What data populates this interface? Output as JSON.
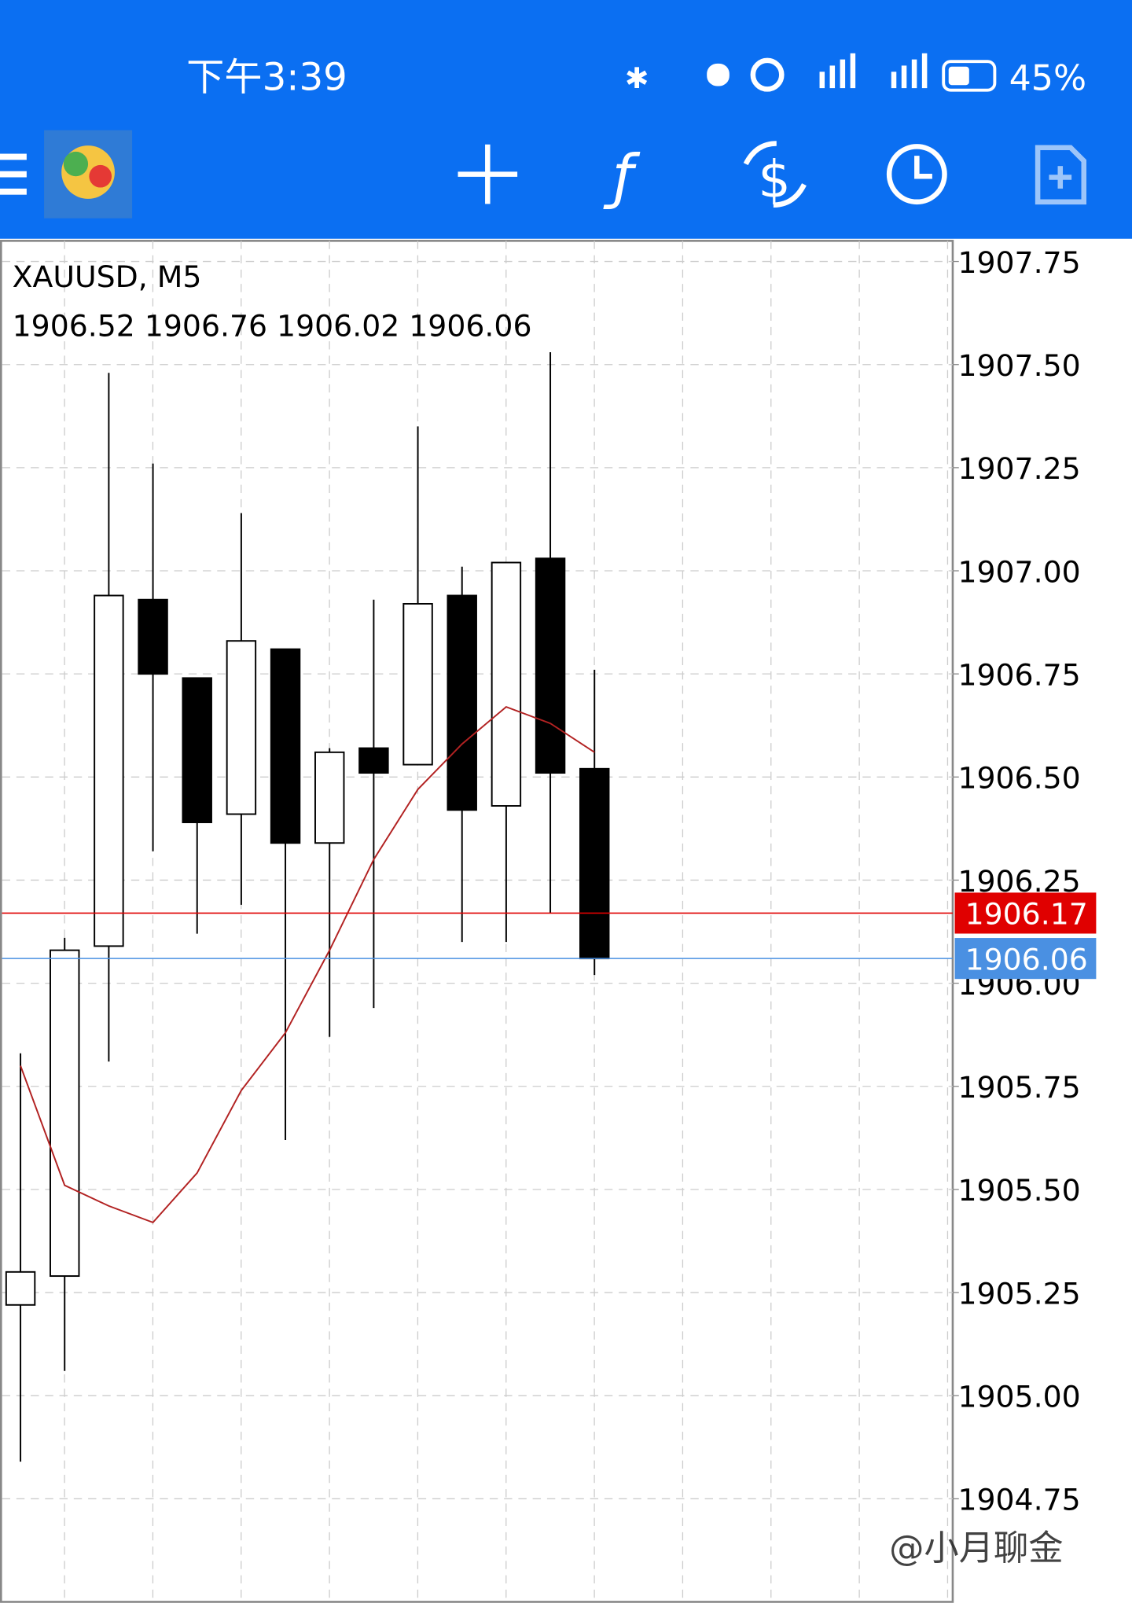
{
  "status_bar": {
    "time": "下午3:39",
    "battery": "45%"
  },
  "watermark": "@小月聊金",
  "chart_data": {
    "type": "candlestick",
    "title": "XAUUSD, M5",
    "info": "1906.52 1906.76 1906.02 1906.06",
    "open": [
      1905.22,
      1905.29,
      1906.09,
      1906.93,
      1906.74,
      1906.41,
      1906.81,
      1906.34,
      1906.57,
      1906.53,
      1906.94,
      1906.43,
      1907.03,
      1906.52
    ],
    "high": [
      1905.83,
      1906.11,
      1907.48,
      1907.26,
      1906.74,
      1907.14,
      1906.81,
      1906.57,
      1906.93,
      1907.35,
      1907.01,
      1907.02,
      1907.53,
      1906.76
    ],
    "low": [
      1904.84,
      1905.06,
      1905.81,
      1906.32,
      1906.12,
      1906.19,
      1905.62,
      1905.87,
      1905.94,
      1906.53,
      1906.1,
      1906.1,
      1906.17,
      1906.02
    ],
    "close": [
      1905.3,
      1906.08,
      1906.94,
      1906.75,
      1906.39,
      1906.83,
      1906.34,
      1906.56,
      1906.51,
      1906.92,
      1906.42,
      1907.02,
      1906.51,
      1906.06
    ],
    "series": [
      {
        "color": "#b22222",
        "values": [
          1905.8,
          1905.51,
          1905.46,
          1905.42,
          1905.54,
          1905.74,
          1905.88,
          1906.08,
          1906.3,
          1906.47,
          1906.58,
          1906.67,
          1906.63,
          1906.56
        ]
      }
    ],
    "bid_line": {
      "value": 1906.17,
      "color": "#e00000"
    },
    "ask_line": {
      "value": 1906.06,
      "color": "#4a90e2"
    },
    "ylim": [
      1904.5,
      1907.8
    ],
    "yticks": [
      1904.75,
      {
        "value": 1905.0,
        "label": "1905.00"
      },
      1905.25,
      {
        "value": 1905.5,
        "label": "1905.50"
      },
      1905.75,
      {
        "value": 1906.0,
        "label": "1906.00"
      },
      1906.25,
      {
        "value": 1906.5,
        "label": "1906.50"
      },
      1906.75,
      {
        "value": 1907.0,
        "label": "1907.00"
      },
      1907.25,
      {
        "value": 1907.5,
        "label": "1907.50"
      },
      1907.75
    ],
    "grid": true
  }
}
